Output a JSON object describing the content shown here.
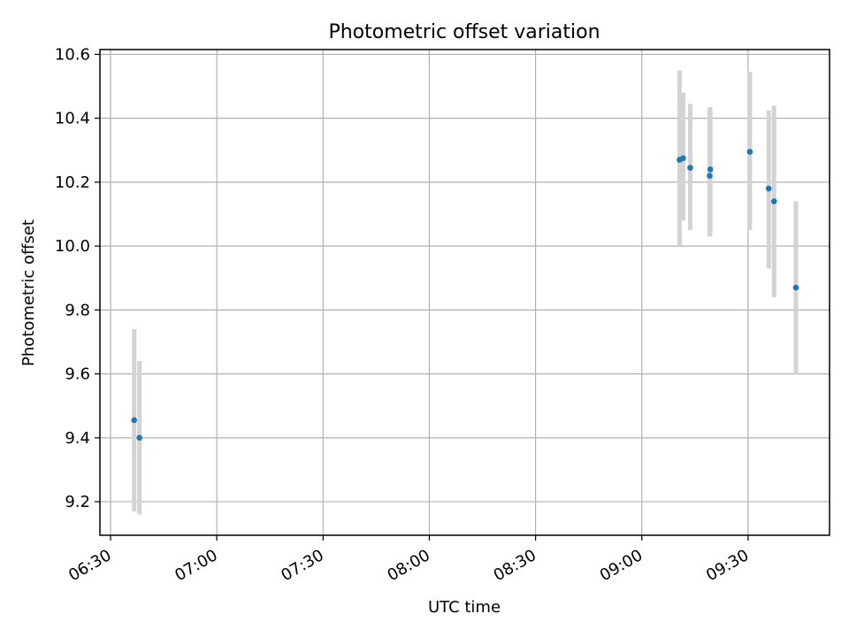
{
  "chart_data": {
    "type": "scatter",
    "title": "Photometric offset variation",
    "xlabel": "UTC time",
    "ylabel": "Photometric offset",
    "x_tick_labels": [
      "06:30",
      "07:00",
      "07:30",
      "08:00",
      "08:30",
      "09:00",
      "09:30"
    ],
    "y_tick_labels": [
      "9.2",
      "9.4",
      "9.6",
      "9.8",
      "10.0",
      "10.2",
      "10.4",
      "10.6"
    ],
    "x_ticks": [
      "06:30",
      "07:00",
      "07:30",
      "08:00",
      "08:30",
      "09:00",
      "09:30"
    ],
    "y_ticks": [
      9.2,
      9.4,
      9.6,
      9.8,
      10.0,
      10.2,
      10.4,
      10.6
    ],
    "xlim": [
      "06:27",
      "09:53"
    ],
    "ylim": [
      9.095,
      10.615
    ],
    "grid": true,
    "point_color": "#1f77b4",
    "errorbar_color": "#d3d3d3",
    "points": [
      {
        "x": "06:36:40",
        "y": 9.455,
        "err_low": 9.17,
        "err_high": 9.74
      },
      {
        "x": "06:38:10",
        "y": 9.4,
        "err_low": 9.16,
        "err_high": 9.64
      },
      {
        "x": "09:10:40",
        "y": 10.27,
        "err_low": 10.0,
        "err_high": 10.55
      },
      {
        "x": "09:11:40",
        "y": 10.275,
        "err_low": 10.08,
        "err_high": 10.48
      },
      {
        "x": "09:13:40",
        "y": 10.245,
        "err_low": 10.05,
        "err_high": 10.445
      },
      {
        "x": "09:19:20",
        "y": 10.24,
        "err_low": 10.04,
        "err_high": 10.435
      },
      {
        "x": "09:19:10",
        "y": 10.22,
        "err_low": 10.03,
        "err_high": 10.43
      },
      {
        "x": "09:30:30",
        "y": 10.295,
        "err_low": 10.05,
        "err_high": 10.545
      },
      {
        "x": "09:35:50",
        "y": 10.18,
        "err_low": 9.93,
        "err_high": 10.425
      },
      {
        "x": "09:37:20",
        "y": 10.14,
        "err_low": 9.84,
        "err_high": 10.44
      },
      {
        "x": "09:43:30",
        "y": 9.87,
        "err_low": 9.6,
        "err_high": 10.14
      }
    ]
  }
}
